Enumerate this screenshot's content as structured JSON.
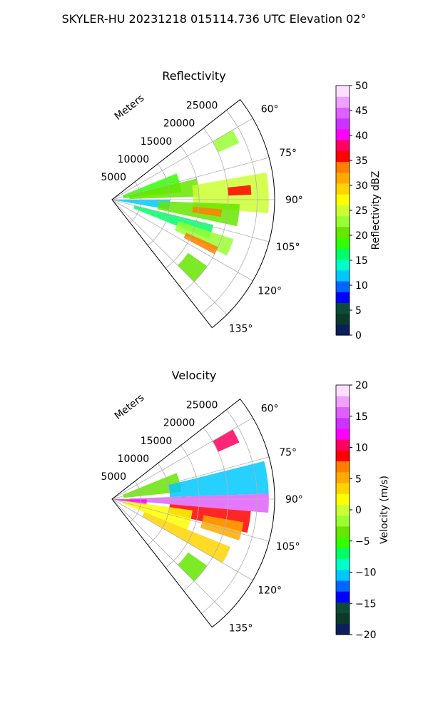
{
  "figure": {
    "suptitle": "SKYLER-HU  20231218  015114.736 UTC Elevation 02°"
  },
  "chart_data": [
    {
      "type": "heatmap",
      "subtype": "polar-ppi-sector",
      "title": "Reflectivity",
      "radial_label": "Meters",
      "range_ticks": [
        5000,
        10000,
        15000,
        20000,
        25000
      ],
      "range_tick_labels": [
        "5000",
        "10000",
        "15000",
        "20000",
        "25000"
      ],
      "range_max": 28000,
      "azimuth_range_deg": [
        52,
        142
      ],
      "azimuth_ticks": [
        60,
        75,
        90,
        105,
        120,
        135
      ],
      "azimuth_tick_labels": [
        "60°",
        "75°",
        "90°",
        "105°",
        "120°",
        "135°"
      ],
      "grid": true,
      "colorbar": {
        "label": "Reflectivity dBZ",
        "range": [
          0,
          50
        ],
        "ticks": [
          0,
          5,
          10,
          15,
          20,
          25,
          30,
          35,
          40,
          45,
          50
        ],
        "tick_labels": [
          "0",
          "5",
          "10",
          "15",
          "20",
          "25",
          "30",
          "35",
          "40",
          "45",
          "50"
        ],
        "colors": [
          "#0a1f5c",
          "#0a3a2a",
          "#0d4a37",
          "#0000ff",
          "#0066ff",
          "#00c8ff",
          "#00ffc8",
          "#00ff66",
          "#33ff00",
          "#66e600",
          "#99ff33",
          "#ccff33",
          "#ffff00",
          "#ffd400",
          "#ffaa00",
          "#ff7f00",
          "#ff0000",
          "#ff0060",
          "#ff00ff",
          "#cc33ff",
          "#e060ff",
          "#f0a0ff",
          "#fce0ff"
        ]
      },
      "echo_regions": [
        {
          "az": [
            60,
            66
          ],
          "r": [
            20000,
            24000
          ],
          "value": 22
        },
        {
          "az": [
            68,
            84
          ],
          "r": [
            2000,
            12000
          ],
          "value": 19
        },
        {
          "az": [
            76,
            88
          ],
          "r": [
            3000,
            15000
          ],
          "value": 21
        },
        {
          "az": [
            80,
            95
          ],
          "r": [
            14000,
            27000
          ],
          "value": 24
        },
        {
          "az": [
            84,
            88
          ],
          "r": [
            20000,
            24000
          ],
          "value": 36
        },
        {
          "az": [
            90,
            100
          ],
          "r": [
            0,
            10000
          ],
          "value": 13
        },
        {
          "az": [
            92,
            102
          ],
          "r": [
            8000,
            22000
          ],
          "value": 20
        },
        {
          "az": [
            95,
            99
          ],
          "r": [
            14000,
            19000
          ],
          "value": 33
        },
        {
          "az": [
            104,
            112
          ],
          "r": [
            4000,
            18000
          ],
          "value": 17
        },
        {
          "az": [
            108,
            116
          ],
          "r": [
            12000,
            22000
          ],
          "value": 22
        },
        {
          "az": [
            114,
            118
          ],
          "r": [
            14000,
            20000
          ],
          "value": 34
        },
        {
          "az": [
            125,
            135
          ],
          "r": [
            16000,
            20000
          ],
          "value": 20
        }
      ]
    },
    {
      "type": "heatmap",
      "subtype": "polar-ppi-sector",
      "title": "Velocity",
      "radial_label": "Meters",
      "range_ticks": [
        5000,
        10000,
        15000,
        20000,
        25000
      ],
      "range_tick_labels": [
        "5000",
        "10000",
        "15000",
        "20000",
        "25000"
      ],
      "range_max": 28000,
      "azimuth_range_deg": [
        52,
        142
      ],
      "azimuth_ticks": [
        60,
        75,
        90,
        105,
        120,
        135
      ],
      "azimuth_tick_labels": [
        "60°",
        "75°",
        "90°",
        "105°",
        "120°",
        "135°"
      ],
      "grid": true,
      "colorbar": {
        "label": "Velocity (m/s)",
        "range": [
          -20,
          20
        ],
        "ticks": [
          -20,
          -15,
          -10,
          -5,
          0,
          5,
          10,
          15,
          20
        ],
        "tick_labels": [
          "−20",
          "−15",
          "−10",
          "−5",
          "0",
          "5",
          "10",
          "15",
          "20"
        ],
        "colors": [
          "#0a1f5c",
          "#0a3a2a",
          "#0d4a37",
          "#0000ff",
          "#0066ff",
          "#00c8ff",
          "#00ffc8",
          "#00ff66",
          "#33ff00",
          "#66e600",
          "#99ff33",
          "#ccff33",
          "#ffff00",
          "#ffd400",
          "#ffaa00",
          "#ff7f00",
          "#ff0000",
          "#ff0060",
          "#ff00ff",
          "#cc33ff",
          "#e060ff",
          "#f0a0ff",
          "#fce0ff"
        ]
      },
      "echo_regions": [
        {
          "az": [
            60,
            66
          ],
          "r": [
            20000,
            24000
          ],
          "value": 10
        },
        {
          "az": [
            68,
            84
          ],
          "r": [
            2000,
            12000
          ],
          "value": -4
        },
        {
          "az": [
            76,
            88
          ],
          "r": [
            10000,
            27000
          ],
          "value": -10
        },
        {
          "az": [
            88,
            95
          ],
          "r": [
            3000,
            27000
          ],
          "value": 15
        },
        {
          "az": [
            90,
            100
          ],
          "r": [
            0,
            6000
          ],
          "value": 13
        },
        {
          "az": [
            95,
            104
          ],
          "r": [
            10000,
            24000
          ],
          "value": 9
        },
        {
          "az": [
            100,
            108
          ],
          "r": [
            16000,
            23000
          ],
          "value": 6
        },
        {
          "az": [
            98,
            112
          ],
          "r": [
            2000,
            14000
          ],
          "value": 1
        },
        {
          "az": [
            112,
            120
          ],
          "r": [
            6000,
            22000
          ],
          "value": 3
        },
        {
          "az": [
            125,
            135
          ],
          "r": [
            16000,
            20000
          ],
          "value": -3
        }
      ]
    }
  ]
}
